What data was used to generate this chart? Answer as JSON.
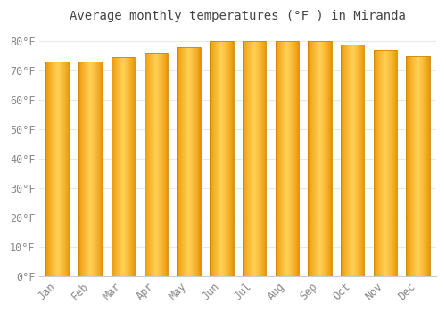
{
  "title": "Average monthly temperatures (°F ) in Miranda",
  "months": [
    "Jan",
    "Feb",
    "Mar",
    "Apr",
    "May",
    "Jun",
    "Jul",
    "Aug",
    "Sep",
    "Oct",
    "Nov",
    "Dec"
  ],
  "values": [
    73.2,
    73.2,
    74.5,
    76.0,
    78.0,
    80.0,
    80.0,
    80.0,
    80.0,
    79.0,
    77.0,
    75.0
  ],
  "bar_color_center": "#FFD060",
  "bar_color_edge": "#E89000",
  "bar_outline_color": "#CC8800",
  "background_color": "#ffffff",
  "grid_color": "#e8e8e8",
  "ylim": [
    0,
    84
  ],
  "ytick_values": [
    0,
    10,
    20,
    30,
    40,
    50,
    60,
    70,
    80
  ],
  "title_fontsize": 10,
  "tick_fontsize": 8.5,
  "tick_color": "#888888",
  "title_color": "#444444"
}
